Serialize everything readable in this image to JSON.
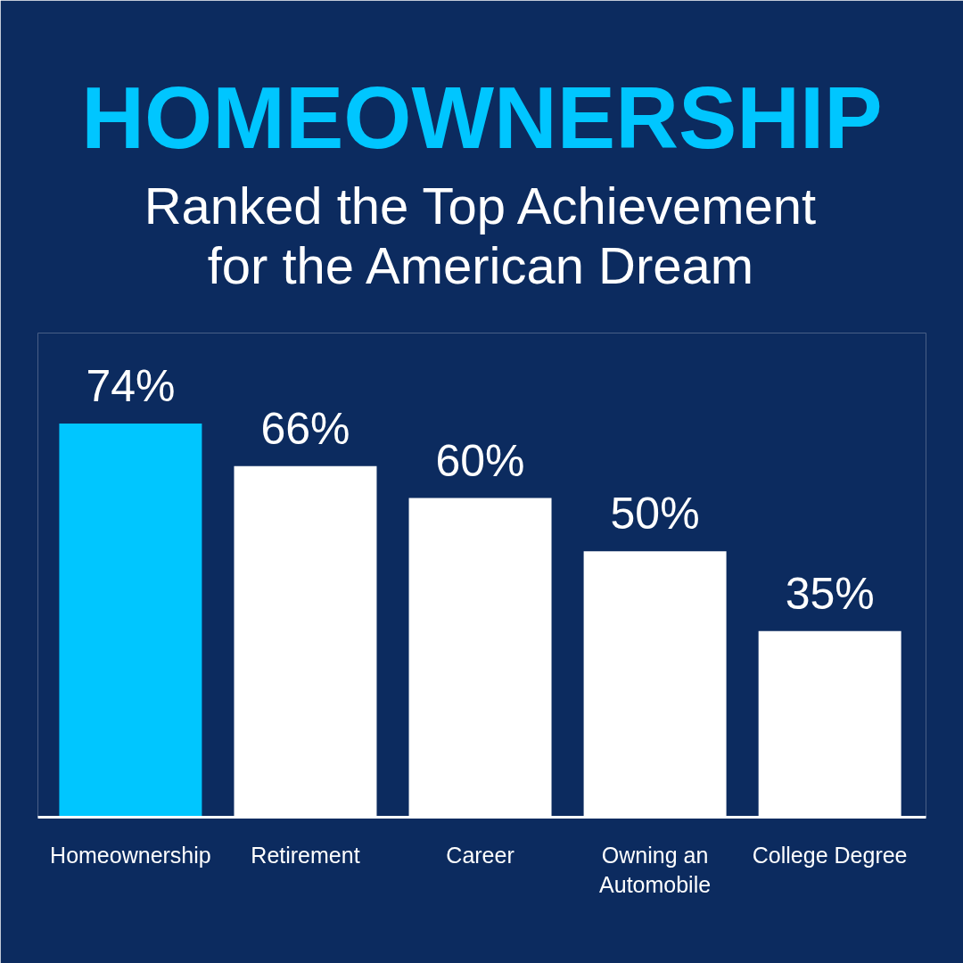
{
  "chart_data": {
    "type": "bar",
    "title": "HOMEOWNERSHIP",
    "subtitle": "Ranked the Top Achievement for the American Dream",
    "categories": [
      "Homeownership",
      "Retirement",
      "Career",
      "Owning an Automobile",
      "College Degree"
    ],
    "values": [
      74,
      66,
      60,
      50,
      35
    ],
    "colors": [
      "#00c6ff",
      "#ffffff",
      "#ffffff",
      "#ffffff",
      "#ffffff"
    ],
    "value_labels": [
      "74%",
      "66%",
      "60%",
      "50%",
      "35%"
    ]
  }
}
